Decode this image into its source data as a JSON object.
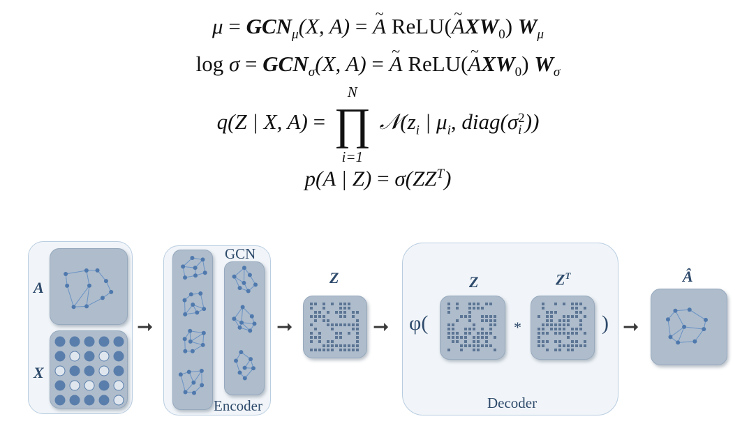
{
  "equations": {
    "mu": {
      "lhs": "μ",
      "gcn": "GCN",
      "sub": "μ",
      "args": "(X, A)",
      "relu": "ReLU",
      "xw": "XW",
      "w0": "0",
      "w": "W",
      "wsub": "μ"
    },
    "sigma": {
      "log": "log",
      "lhs": "σ",
      "gcn": "GCN",
      "sub": "σ",
      "args": "(X, A)",
      "relu": "ReLU",
      "xw": "XW",
      "w0": "0",
      "w": "W",
      "wsub": "σ"
    },
    "q": {
      "lhs": "q(Z | X, A)",
      "prod_upper": "N",
      "prod_lower": "i=1",
      "normal": "𝒩",
      "body_a": "(z",
      "body_i": "i",
      "body_b": " | μ",
      "body_c": ", diag(σ",
      "body_d": "))"
    },
    "p": {
      "lhs": "p(A | Z)",
      "rhs_a": "σ(ZZ",
      "rhs_sup": "T",
      "rhs_b": ")"
    }
  },
  "diagram": {
    "input_label_A": "A",
    "input_label_X": "X",
    "gcn_label": "GCN",
    "encoder_label": "Encoder",
    "z_label": "Z",
    "decoder_z_label": "Z",
    "decoder_zt_label": "Z",
    "decoder_zt_sup": "T",
    "phi_open": "φ(",
    "phi_close": ")",
    "multiply": "*",
    "decoder_label": "Decoder",
    "output_label": "Â",
    "arrow": "➞",
    "node_matrix": [
      [
        1,
        1,
        1,
        1,
        1
      ],
      [
        1,
        0,
        1,
        0,
        1
      ],
      [
        0,
        1,
        1,
        0,
        1
      ],
      [
        1,
        0,
        0,
        1,
        0
      ],
      [
        1,
        1,
        1,
        1,
        0
      ]
    ],
    "colors": {
      "box_border": "#b9cde0",
      "card_fill": "#aebccc",
      "graph_line": "#6a93c4",
      "text_blue": "#2e4a6b"
    }
  }
}
